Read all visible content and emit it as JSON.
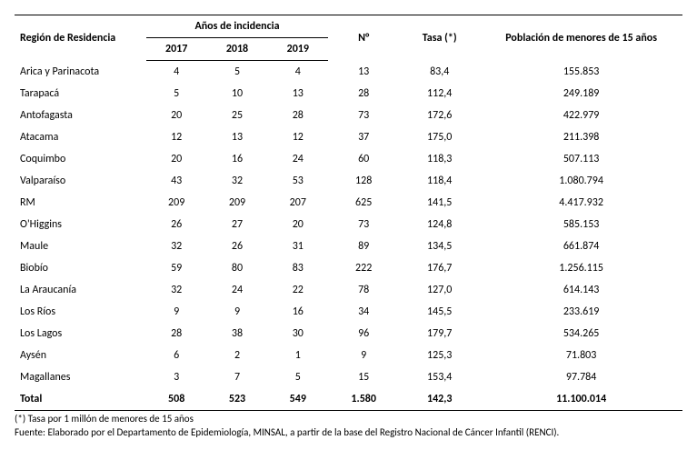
{
  "table": {
    "header": {
      "region": "Región de Residencia",
      "anos": "Años de incidencia",
      "y2017": "2017",
      "y2018": "2018",
      "y2019": "2019",
      "n": "N°",
      "tasa": "Tasa (*)",
      "pop": "Población de menores de 15 años"
    },
    "rows": [
      {
        "region": "Arica y Parinacota",
        "y2017": "4",
        "y2018": "5",
        "y2019": "4",
        "n": "13",
        "tasa": "83,4",
        "pop": "155.853"
      },
      {
        "region": "Tarapacá",
        "y2017": "5",
        "y2018": "10",
        "y2019": "13",
        "n": "28",
        "tasa": "112,4",
        "pop": "249.189"
      },
      {
        "region": "Antofagasta",
        "y2017": "20",
        "y2018": "25",
        "y2019": "28",
        "n": "73",
        "tasa": "172,6",
        "pop": "422.979"
      },
      {
        "region": "Atacama",
        "y2017": "12",
        "y2018": "13",
        "y2019": "12",
        "n": "37",
        "tasa": "175,0",
        "pop": "211.398"
      },
      {
        "region": "Coquimbo",
        "y2017": "20",
        "y2018": "16",
        "y2019": "24",
        "n": "60",
        "tasa": "118,3",
        "pop": "507.113"
      },
      {
        "region": "Valparaíso",
        "y2017": "43",
        "y2018": "32",
        "y2019": "53",
        "n": "128",
        "tasa": "118,4",
        "pop": "1.080.794"
      },
      {
        "region": "RM",
        "y2017": "209",
        "y2018": "209",
        "y2019": "207",
        "n": "625",
        "tasa": "141,5",
        "pop": "4.417.932"
      },
      {
        "region": "O'Higgins",
        "y2017": "26",
        "y2018": "27",
        "y2019": "20",
        "n": "73",
        "tasa": "124,8",
        "pop": "585.153"
      },
      {
        "region": "Maule",
        "y2017": "32",
        "y2018": "26",
        "y2019": "31",
        "n": "89",
        "tasa": "134,5",
        "pop": "661.874"
      },
      {
        "region": "Biobío",
        "y2017": "59",
        "y2018": "80",
        "y2019": "83",
        "n": "222",
        "tasa": "176,7",
        "pop": "1.256.115"
      },
      {
        "region": "La Araucanía",
        "y2017": "32",
        "y2018": "24",
        "y2019": "22",
        "n": "78",
        "tasa": "127,0",
        "pop": "614.143"
      },
      {
        "region": "Los Ríos",
        "y2017": "9",
        "y2018": "9",
        "y2019": "16",
        "n": "34",
        "tasa": "145,5",
        "pop": "233.619"
      },
      {
        "region": "Los Lagos",
        "y2017": "28",
        "y2018": "38",
        "y2019": "30",
        "n": "96",
        "tasa": "179,7",
        "pop": "534.265"
      },
      {
        "region": "Aysén",
        "y2017": "6",
        "y2018": "2",
        "y2019": "1",
        "n": "9",
        "tasa": "125,3",
        "pop": "71.803"
      },
      {
        "region": "Magallanes",
        "y2017": "3",
        "y2018": "7",
        "y2019": "5",
        "n": "15",
        "tasa": "153,4",
        "pop": "97.784"
      }
    ],
    "total": {
      "region": "Total",
      "y2017": "508",
      "y2018": "523",
      "y2019": "549",
      "n": "1.580",
      "tasa": "142,3",
      "pop": "11.100.014"
    }
  },
  "footnotes": {
    "tasa": "(*) Tasa por 1 millón de menores de 15 años",
    "fuente": "Fuente: Elaborado por el Departamento de Epidemiología, MINSAL, a partir de la base del Registro Nacional de Cáncer Infantil (RENCI)."
  }
}
